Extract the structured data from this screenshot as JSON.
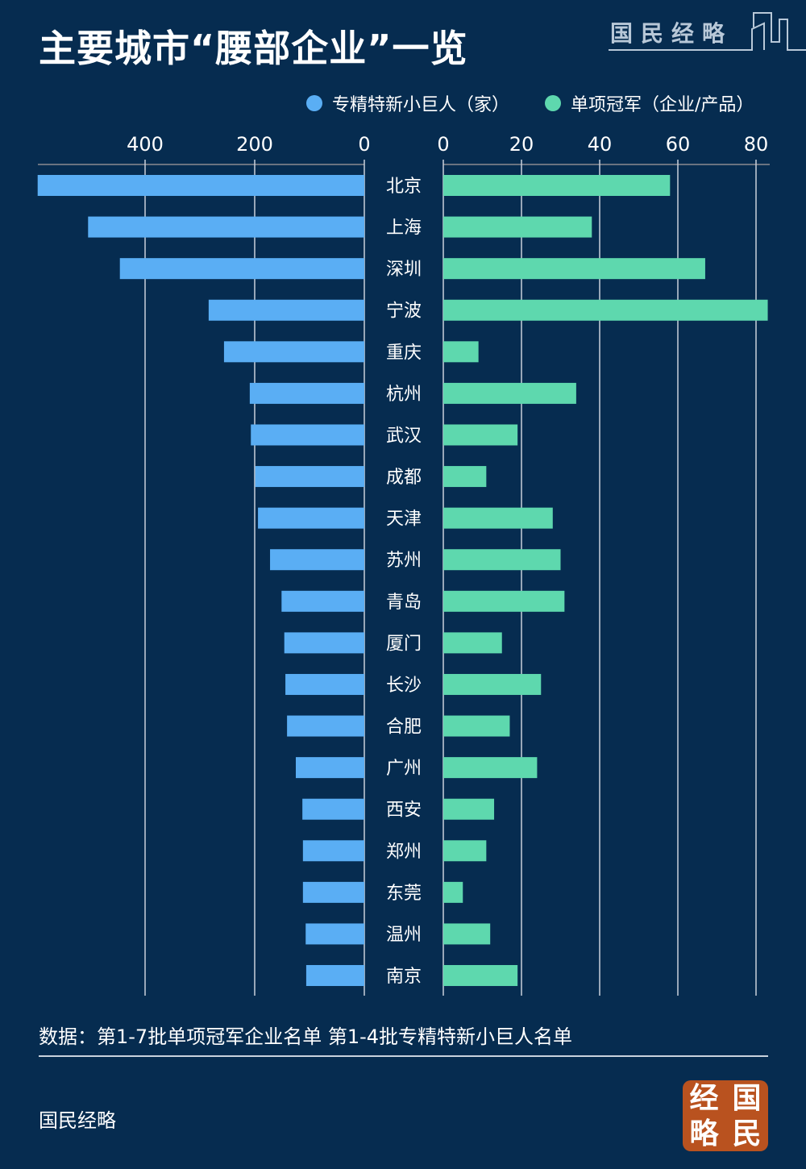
{
  "title": "主要城市“腰部企业”一览",
  "logo_text": "国民经略",
  "legend": [
    {
      "label": "专精特新小巨人（家）",
      "color": "#5aaef4"
    },
    {
      "label": "单项冠军（企业/产品）",
      "color": "#5ed8ae"
    }
  ],
  "chart_data": {
    "type": "bar",
    "orientation": "horizontal-butterfly",
    "categories": [
      "北京",
      "上海",
      "深圳",
      "宁波",
      "重庆",
      "杭州",
      "武汉",
      "成都",
      "天津",
      "苏州",
      "青岛",
      "厦门",
      "长沙",
      "合肥",
      "广州",
      "西安",
      "郑州",
      "东莞",
      "温州",
      "南京"
    ],
    "series": [
      {
        "name": "专精特新小巨人（家）",
        "color": "#5aaef4",
        "xlim": [
          0,
          600
        ],
        "ticks": [
          "400",
          "200",
          "0"
        ],
        "tick_values": [
          400,
          200,
          0
        ],
        "values": [
          596,
          504,
          446,
          284,
          256,
          209,
          207,
          199,
          194,
          172,
          151,
          146,
          144,
          141,
          125,
          113,
          112,
          112,
          107,
          106
        ]
      },
      {
        "name": "单项冠军（企业/产品）",
        "color": "#5ed8ae",
        "xlim": [
          0,
          83
        ],
        "ticks": [
          "0",
          "20",
          "40",
          "60",
          "80"
        ],
        "tick_values": [
          0,
          20,
          40,
          60,
          80
        ],
        "values": [
          58,
          38,
          67,
          83,
          9,
          34,
          19,
          11,
          28,
          30,
          31,
          15,
          25,
          17,
          24,
          13,
          11,
          5,
          12,
          19
        ]
      }
    ],
    "grid": true,
    "legend_position": "top"
  },
  "source": "数据：第1-7批单项冠军企业名单 第1-4批专精特新小巨人名单",
  "brand": "国民经略",
  "seal": [
    "经",
    "国",
    "略",
    "民"
  ]
}
